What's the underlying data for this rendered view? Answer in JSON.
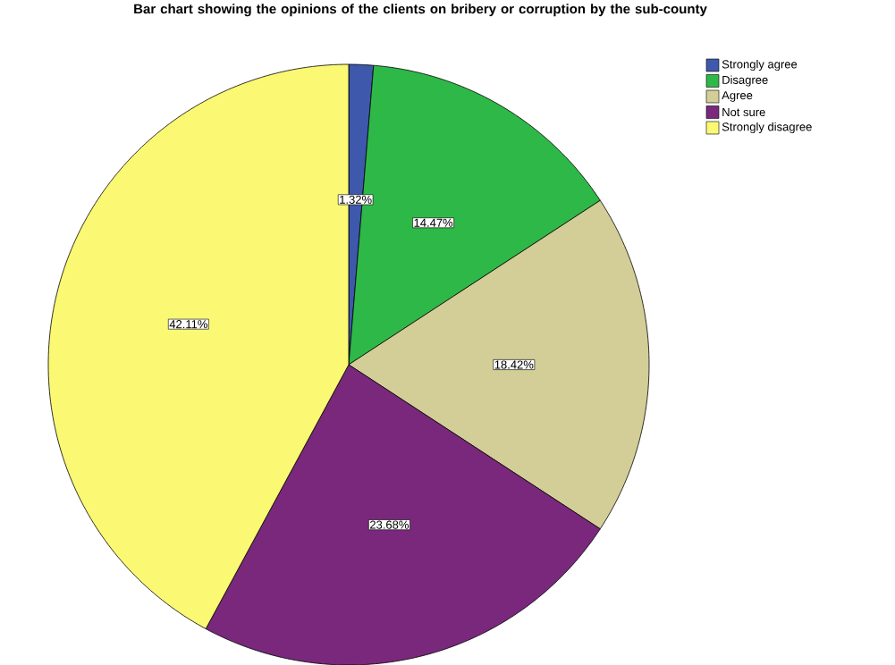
{
  "chart_data": {
    "type": "pie",
    "title": "Bar chart showing the opinions of the clients on bribery or corruption by the sub-county",
    "categories": [
      "Strongly agree",
      "Disagree",
      "Agree",
      "Not sure",
      "Strongly disagree"
    ],
    "values": [
      1.32,
      14.47,
      18.42,
      23.68,
      42.11
    ],
    "value_labels": [
      "1.32%",
      "14.47%",
      "18.42%",
      "23.68%",
      "42.11%"
    ],
    "colors": [
      "#3e58ac",
      "#2eb848",
      "#d3ce97",
      "#79287c",
      "#fbf873"
    ],
    "legend": "top right"
  }
}
